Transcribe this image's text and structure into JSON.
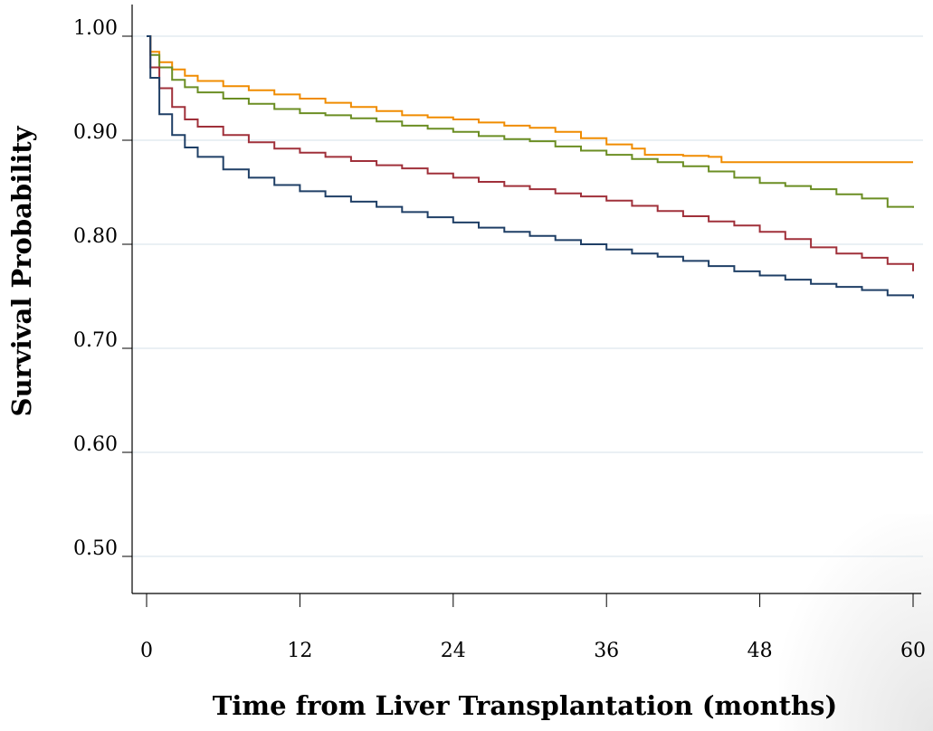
{
  "chart_data": {
    "type": "line",
    "title": "",
    "xlabel": "Time from Liver Transplantation (months)",
    "ylabel": "Survival Probability",
    "xlim": [
      0,
      60
    ],
    "ylim": [
      0.45,
      1.0
    ],
    "x_ticks": [
      0,
      12,
      24,
      36,
      48,
      60
    ],
    "x_tick_labels": [
      "0",
      "12",
      "24",
      "36",
      "48",
      "60"
    ],
    "y_ticks": [
      1.0,
      0.9,
      0.8,
      0.7,
      0.6,
      0.5
    ],
    "y_tick_labels": [
      "1.00",
      "0.90",
      "0.80",
      "0.70",
      "0.60",
      "0.50"
    ],
    "grid": "horizontal",
    "legend": "none",
    "series": [
      {
        "color": "#f08c00",
        "points": [
          [
            0,
            1.0
          ],
          [
            0.3,
            0.985
          ],
          [
            1,
            0.975
          ],
          [
            2,
            0.968
          ],
          [
            3,
            0.962
          ],
          [
            4,
            0.957
          ],
          [
            6,
            0.952
          ],
          [
            8,
            0.948
          ],
          [
            10,
            0.944
          ],
          [
            12,
            0.94
          ],
          [
            14,
            0.936
          ],
          [
            16,
            0.932
          ],
          [
            18,
            0.928
          ],
          [
            20,
            0.924
          ],
          [
            22,
            0.922
          ],
          [
            24,
            0.92
          ],
          [
            26,
            0.917
          ],
          [
            28,
            0.914
          ],
          [
            30,
            0.912
          ],
          [
            32,
            0.908
          ],
          [
            34,
            0.902
          ],
          [
            36,
            0.896
          ],
          [
            38,
            0.892
          ],
          [
            39,
            0.886
          ],
          [
            42,
            0.885
          ],
          [
            44,
            0.884
          ],
          [
            45,
            0.879
          ],
          [
            50,
            0.879
          ],
          [
            55,
            0.879
          ],
          [
            60,
            0.879
          ]
        ]
      },
      {
        "color": "#6b8e23",
        "points": [
          [
            0,
            1.0
          ],
          [
            0.3,
            0.982
          ],
          [
            1,
            0.97
          ],
          [
            2,
            0.958
          ],
          [
            3,
            0.951
          ],
          [
            4,
            0.946
          ],
          [
            6,
            0.94
          ],
          [
            8,
            0.935
          ],
          [
            10,
            0.93
          ],
          [
            12,
            0.926
          ],
          [
            14,
            0.924
          ],
          [
            16,
            0.921
          ],
          [
            18,
            0.918
          ],
          [
            20,
            0.914
          ],
          [
            22,
            0.911
          ],
          [
            24,
            0.908
          ],
          [
            26,
            0.904
          ],
          [
            28,
            0.901
          ],
          [
            30,
            0.899
          ],
          [
            32,
            0.894
          ],
          [
            34,
            0.89
          ],
          [
            36,
            0.886
          ],
          [
            38,
            0.882
          ],
          [
            40,
            0.879
          ],
          [
            42,
            0.875
          ],
          [
            44,
            0.87
          ],
          [
            46,
            0.864
          ],
          [
            48,
            0.859
          ],
          [
            50,
            0.856
          ],
          [
            52,
            0.853
          ],
          [
            54,
            0.848
          ],
          [
            56,
            0.844
          ],
          [
            58,
            0.836
          ],
          [
            60,
            0.835
          ]
        ]
      },
      {
        "color": "#a0303a",
        "points": [
          [
            0,
            1.0
          ],
          [
            0.3,
            0.97
          ],
          [
            1,
            0.95
          ],
          [
            2,
            0.932
          ],
          [
            3,
            0.92
          ],
          [
            4,
            0.913
          ],
          [
            6,
            0.905
          ],
          [
            8,
            0.898
          ],
          [
            10,
            0.892
          ],
          [
            12,
            0.888
          ],
          [
            14,
            0.884
          ],
          [
            16,
            0.88
          ],
          [
            18,
            0.876
          ],
          [
            20,
            0.873
          ],
          [
            22,
            0.868
          ],
          [
            24,
            0.864
          ],
          [
            26,
            0.86
          ],
          [
            28,
            0.856
          ],
          [
            30,
            0.853
          ],
          [
            32,
            0.849
          ],
          [
            34,
            0.846
          ],
          [
            36,
            0.842
          ],
          [
            38,
            0.837
          ],
          [
            40,
            0.832
          ],
          [
            42,
            0.827
          ],
          [
            44,
            0.822
          ],
          [
            46,
            0.818
          ],
          [
            48,
            0.812
          ],
          [
            50,
            0.805
          ],
          [
            52,
            0.797
          ],
          [
            54,
            0.791
          ],
          [
            56,
            0.787
          ],
          [
            58,
            0.781
          ],
          [
            60,
            0.774
          ]
        ]
      },
      {
        "color": "#1f3f66",
        "points": [
          [
            0,
            1.0
          ],
          [
            0.3,
            0.96
          ],
          [
            1,
            0.925
          ],
          [
            2,
            0.905
          ],
          [
            3,
            0.893
          ],
          [
            4,
            0.884
          ],
          [
            6,
            0.872
          ],
          [
            8,
            0.864
          ],
          [
            10,
            0.857
          ],
          [
            12,
            0.851
          ],
          [
            14,
            0.846
          ],
          [
            16,
            0.841
          ],
          [
            18,
            0.836
          ],
          [
            20,
            0.831
          ],
          [
            22,
            0.826
          ],
          [
            24,
            0.821
          ],
          [
            26,
            0.816
          ],
          [
            28,
            0.812
          ],
          [
            30,
            0.808
          ],
          [
            32,
            0.804
          ],
          [
            34,
            0.8
          ],
          [
            36,
            0.795
          ],
          [
            38,
            0.791
          ],
          [
            40,
            0.788
          ],
          [
            42,
            0.784
          ],
          [
            44,
            0.779
          ],
          [
            46,
            0.774
          ],
          [
            48,
            0.77
          ],
          [
            50,
            0.766
          ],
          [
            52,
            0.762
          ],
          [
            54,
            0.759
          ],
          [
            56,
            0.756
          ],
          [
            58,
            0.751
          ],
          [
            60,
            0.748
          ]
        ]
      }
    ]
  }
}
